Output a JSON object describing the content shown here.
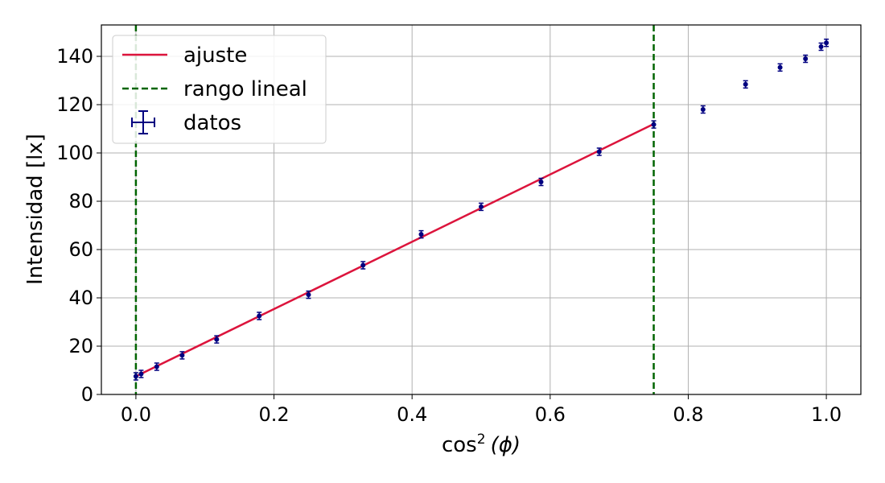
{
  "chart_data": {
    "type": "scatter",
    "title": "",
    "xlabel": "cos",
    "xlabel_sup": "2",
    "xlabel_arg": "(ϕ)",
    "ylabel": "Intensidad [lx]",
    "xlim": [
      -0.05,
      1.05
    ],
    "ylim": [
      0,
      153
    ],
    "xticks": [
      0.0,
      0.2,
      0.4,
      0.6,
      0.8,
      1.0
    ],
    "xtick_labels": [
      "0.0",
      "0.2",
      "0.4",
      "0.6",
      "0.8",
      "1.0"
    ],
    "yticks": [
      0,
      20,
      40,
      60,
      80,
      100,
      120,
      140
    ],
    "ytick_labels": [
      "0",
      "20",
      "40",
      "60",
      "80",
      "100",
      "120",
      "140"
    ],
    "grid": true,
    "legend": {
      "placement": "top-left",
      "entries": [
        "ajuste",
        "rango lineal",
        "datos"
      ]
    },
    "series": [
      {
        "name": "datos",
        "kind": "errorbar",
        "color": "#000080",
        "x": [
          0.0,
          0.0076,
          0.0302,
          0.067,
          0.117,
          0.1786,
          0.25,
          0.329,
          0.4132,
          0.5,
          0.5868,
          0.671,
          0.75,
          0.8214,
          0.883,
          0.933,
          0.9698,
          0.9924,
          1.0
        ],
        "y": [
          7.5,
          8.5,
          11.5,
          16.2,
          22.8,
          32.5,
          41.3,
          53.5,
          66.3,
          77.7,
          88.0,
          100.5,
          111.8,
          118.0,
          128.4,
          135.4,
          139.0,
          144.0,
          145.6
        ],
        "yerr": 1.5,
        "xerr": 0.003
      },
      {
        "name": "ajuste",
        "kind": "line",
        "color": "#dc143c",
        "x": [
          0.0,
          0.75
        ],
        "y": [
          7.5,
          112.0
        ]
      },
      {
        "name": "rango lineal",
        "kind": "vline",
        "style": "dashed",
        "color": "#006400",
        "x": [
          0.0,
          0.75
        ]
      }
    ]
  }
}
